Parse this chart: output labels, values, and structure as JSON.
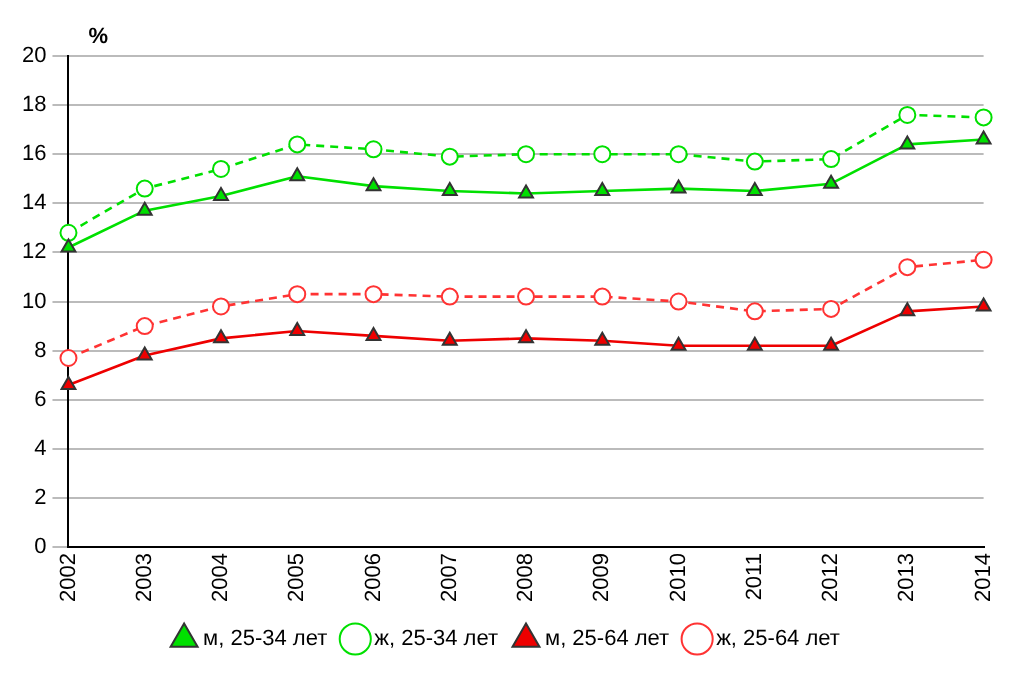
{
  "chart_data": {
    "type": "line",
    "ylabel": "%",
    "categories": [
      "2002",
      "2003",
      "2004",
      "2005",
      "2006",
      "2007",
      "2008",
      "2009",
      "2010",
      "2011",
      "2012",
      "2013",
      "2014"
    ],
    "series": [
      {
        "name": "м, 25-34 лет",
        "color": "#00e000",
        "marker": "triangle",
        "line_style": "solid",
        "values": [
          12.2,
          13.7,
          14.3,
          15.1,
          14.7,
          14.5,
          14.4,
          14.5,
          14.6,
          14.5,
          14.8,
          16.4,
          16.6
        ]
      },
      {
        "name": "ж, 25-34 лет",
        "color": "#00e000",
        "marker": "circle",
        "line_style": "dashed",
        "values": [
          12.8,
          14.6,
          15.4,
          16.4,
          16.2,
          15.9,
          16.0,
          16.0,
          16.0,
          15.7,
          15.8,
          17.6,
          17.5
        ]
      },
      {
        "name": "м, 25-64 лет",
        "color": "#ee0000",
        "marker": "triangle",
        "line_style": "solid",
        "values": [
          6.6,
          7.8,
          8.5,
          8.8,
          8.6,
          8.4,
          8.5,
          8.4,
          8.2,
          8.2,
          8.2,
          9.6,
          9.8
        ]
      },
      {
        "name": "ж, 25-64 лет",
        "color": "#ff3333",
        "marker": "circle",
        "line_style": "dashed",
        "values": [
          7.7,
          9.0,
          9.8,
          10.3,
          10.3,
          10.2,
          10.2,
          10.2,
          10.0,
          9.6,
          9.7,
          11.4,
          11.7
        ]
      }
    ],
    "ylim": [
      0,
      20
    ],
    "yticks": [
      0,
      2,
      4,
      6,
      8,
      10,
      12,
      14,
      16,
      18,
      20
    ],
    "grid": "y",
    "legend": "bottom"
  }
}
